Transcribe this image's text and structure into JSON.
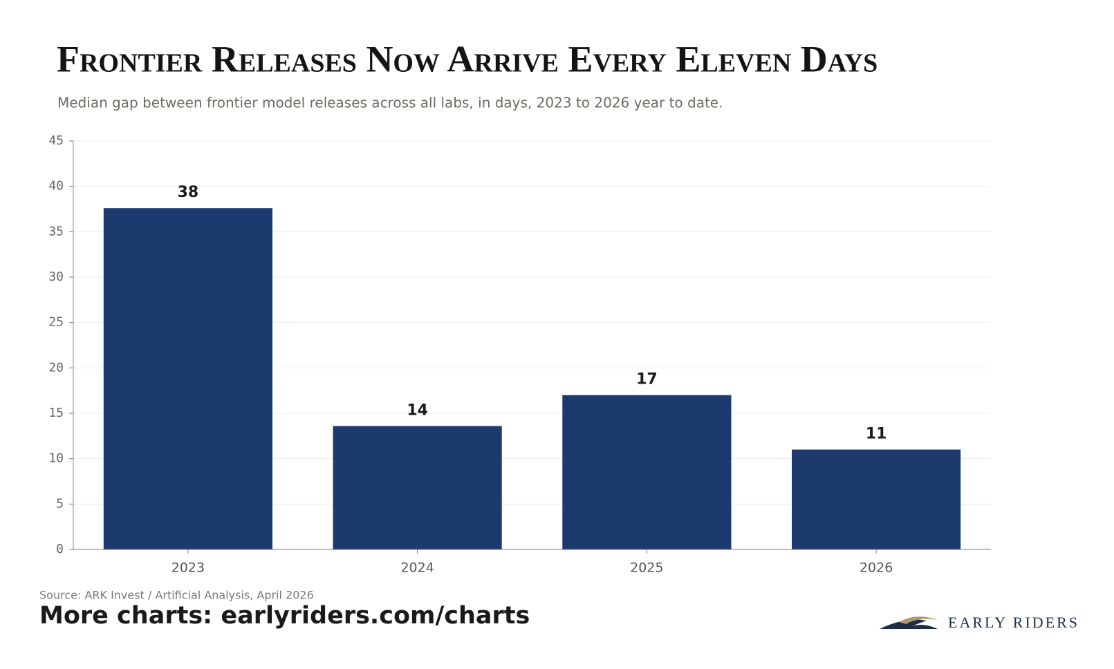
{
  "chart_data": {
    "type": "bar",
    "title": "Frontier Releases Now Arrive Every Eleven Days",
    "subtitle": "Median gap between frontier model releases across all labs, in days, 2023 to 2026 year to date.",
    "categories": [
      "2023",
      "2024",
      "2025",
      "2026"
    ],
    "values": [
      37.6,
      13.6,
      17,
      11
    ],
    "value_labels": [
      "38",
      "14",
      "17",
      "11"
    ],
    "color": "#1d3a6e",
    "ylim": [
      0,
      45
    ],
    "yticks": [
      0,
      5,
      10,
      15,
      20,
      25,
      30,
      35,
      40,
      45
    ],
    "grid": true
  },
  "footer": {
    "source": "Source: ARK Invest / Artificial Analysis, April 2026",
    "cta": "More charts: earlyriders.com/charts"
  },
  "brand": "EARLY RIDERS"
}
